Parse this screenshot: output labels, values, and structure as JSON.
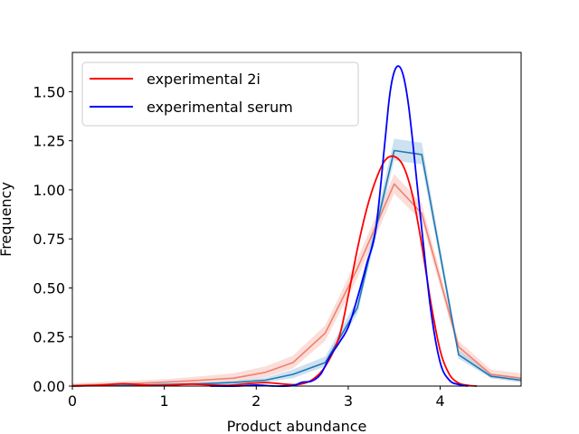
{
  "chart_data": {
    "type": "line",
    "title": "",
    "xlabel": "Product abundance",
    "ylabel": "Frequency",
    "xlim": [
      0,
      4.88
    ],
    "ylim": [
      0,
      1.7
    ],
    "x_ticks": [
      0,
      1,
      2,
      3,
      4
    ],
    "x_tick_labels": [
      "0",
      "1",
      "2",
      "3",
      "4"
    ],
    "y_ticks": [
      0,
      0.25,
      0.5,
      0.75,
      1.0,
      1.25,
      1.5
    ],
    "y_tick_labels": [
      "0.00",
      "0.25",
      "0.50",
      "0.75",
      "1.00",
      "1.25",
      "1.50"
    ],
    "grid": false,
    "legend_position": "top-left",
    "colors": {
      "exp_2i": "#ff0000",
      "exp_serum": "#0000ff",
      "sim_2i_line": "#f08070",
      "sim_2i_band": "#f8c8c0",
      "sim_serum_line": "#1f77b4",
      "sim_serum_band": "#aecde6"
    },
    "series": [
      {
        "name": "experimental 2i",
        "color": "#ff0000",
        "x": [
          0.0,
          0.2,
          0.4,
          0.55,
          0.7,
          0.9,
          1.1,
          1.3,
          1.5,
          1.7,
          1.9,
          2.1,
          2.3,
          2.45,
          2.6,
          2.75,
          2.9,
          3.0,
          3.1,
          3.2,
          3.3,
          3.4,
          3.5,
          3.6,
          3.7,
          3.8,
          3.9,
          4.0,
          4.1,
          4.2,
          4.3,
          4.4
        ],
        "y": [
          0.0,
          0.003,
          0.008,
          0.012,
          0.008,
          0.003,
          0.006,
          0.01,
          0.006,
          0.004,
          0.012,
          0.018,
          0.01,
          0.008,
          0.03,
          0.1,
          0.25,
          0.46,
          0.7,
          0.9,
          1.05,
          1.15,
          1.17,
          1.12,
          0.97,
          0.72,
          0.42,
          0.18,
          0.06,
          0.015,
          0.004,
          0.0
        ]
      },
      {
        "name": "experimental serum",
        "color": "#0000ff",
        "x": [
          1.5,
          1.8,
          2.0,
          2.2,
          2.4,
          2.5,
          2.6,
          2.7,
          2.8,
          2.9,
          3.0,
          3.1,
          3.2,
          3.3,
          3.4,
          3.45,
          3.5,
          3.55,
          3.6,
          3.65,
          3.7,
          3.8,
          3.9,
          4.0,
          4.1,
          4.2,
          4.3
        ],
        "y": [
          0.0,
          0.0,
          0.005,
          0.0,
          0.003,
          0.02,
          0.025,
          0.06,
          0.15,
          0.22,
          0.3,
          0.45,
          0.62,
          0.8,
          1.25,
          1.48,
          1.6,
          1.63,
          1.58,
          1.45,
          1.25,
          0.8,
          0.38,
          0.12,
          0.03,
          0.008,
          0.0
        ]
      },
      {
        "color": "#f08070",
        "x": [
          0.0,
          0.55,
          1.0,
          1.4,
          1.75,
          2.1,
          2.4,
          2.75,
          3.1,
          3.5,
          3.8,
          4.2,
          4.55,
          4.88
        ],
        "y": [
          0.005,
          0.01,
          0.02,
          0.03,
          0.04,
          0.07,
          0.12,
          0.27,
          0.6,
          1.03,
          0.88,
          0.2,
          0.06,
          0.04
        ],
        "band_lower": [
          0.0,
          0.0,
          0.005,
          0.01,
          0.02,
          0.045,
          0.09,
          0.23,
          0.55,
          0.98,
          0.84,
          0.17,
          0.04,
          0.02
        ],
        "band_upper": [
          0.015,
          0.025,
          0.035,
          0.05,
          0.065,
          0.1,
          0.155,
          0.31,
          0.65,
          1.08,
          0.93,
          0.23,
          0.085,
          0.065
        ]
      },
      {
        "color": "#1f77b4",
        "x": [
          0.0,
          0.55,
          1.0,
          1.4,
          1.75,
          2.1,
          2.4,
          2.75,
          3.1,
          3.5,
          3.8,
          4.2,
          4.55,
          4.88
        ],
        "y": [
          0.0,
          0.003,
          0.008,
          0.012,
          0.018,
          0.03,
          0.06,
          0.12,
          0.4,
          1.2,
          1.18,
          0.16,
          0.05,
          0.03
        ],
        "band_lower": [
          0.0,
          0.0,
          0.002,
          0.005,
          0.01,
          0.02,
          0.04,
          0.1,
          0.37,
          1.15,
          1.13,
          0.14,
          0.04,
          0.02
        ],
        "band_upper": [
          0.004,
          0.007,
          0.014,
          0.019,
          0.027,
          0.043,
          0.085,
          0.15,
          0.44,
          1.26,
          1.24,
          0.185,
          0.065,
          0.045
        ]
      }
    ],
    "legend": [
      {
        "label": "experimental 2i",
        "color": "#ff0000"
      },
      {
        "label": "experimental serum",
        "color": "#0000ff"
      }
    ]
  }
}
